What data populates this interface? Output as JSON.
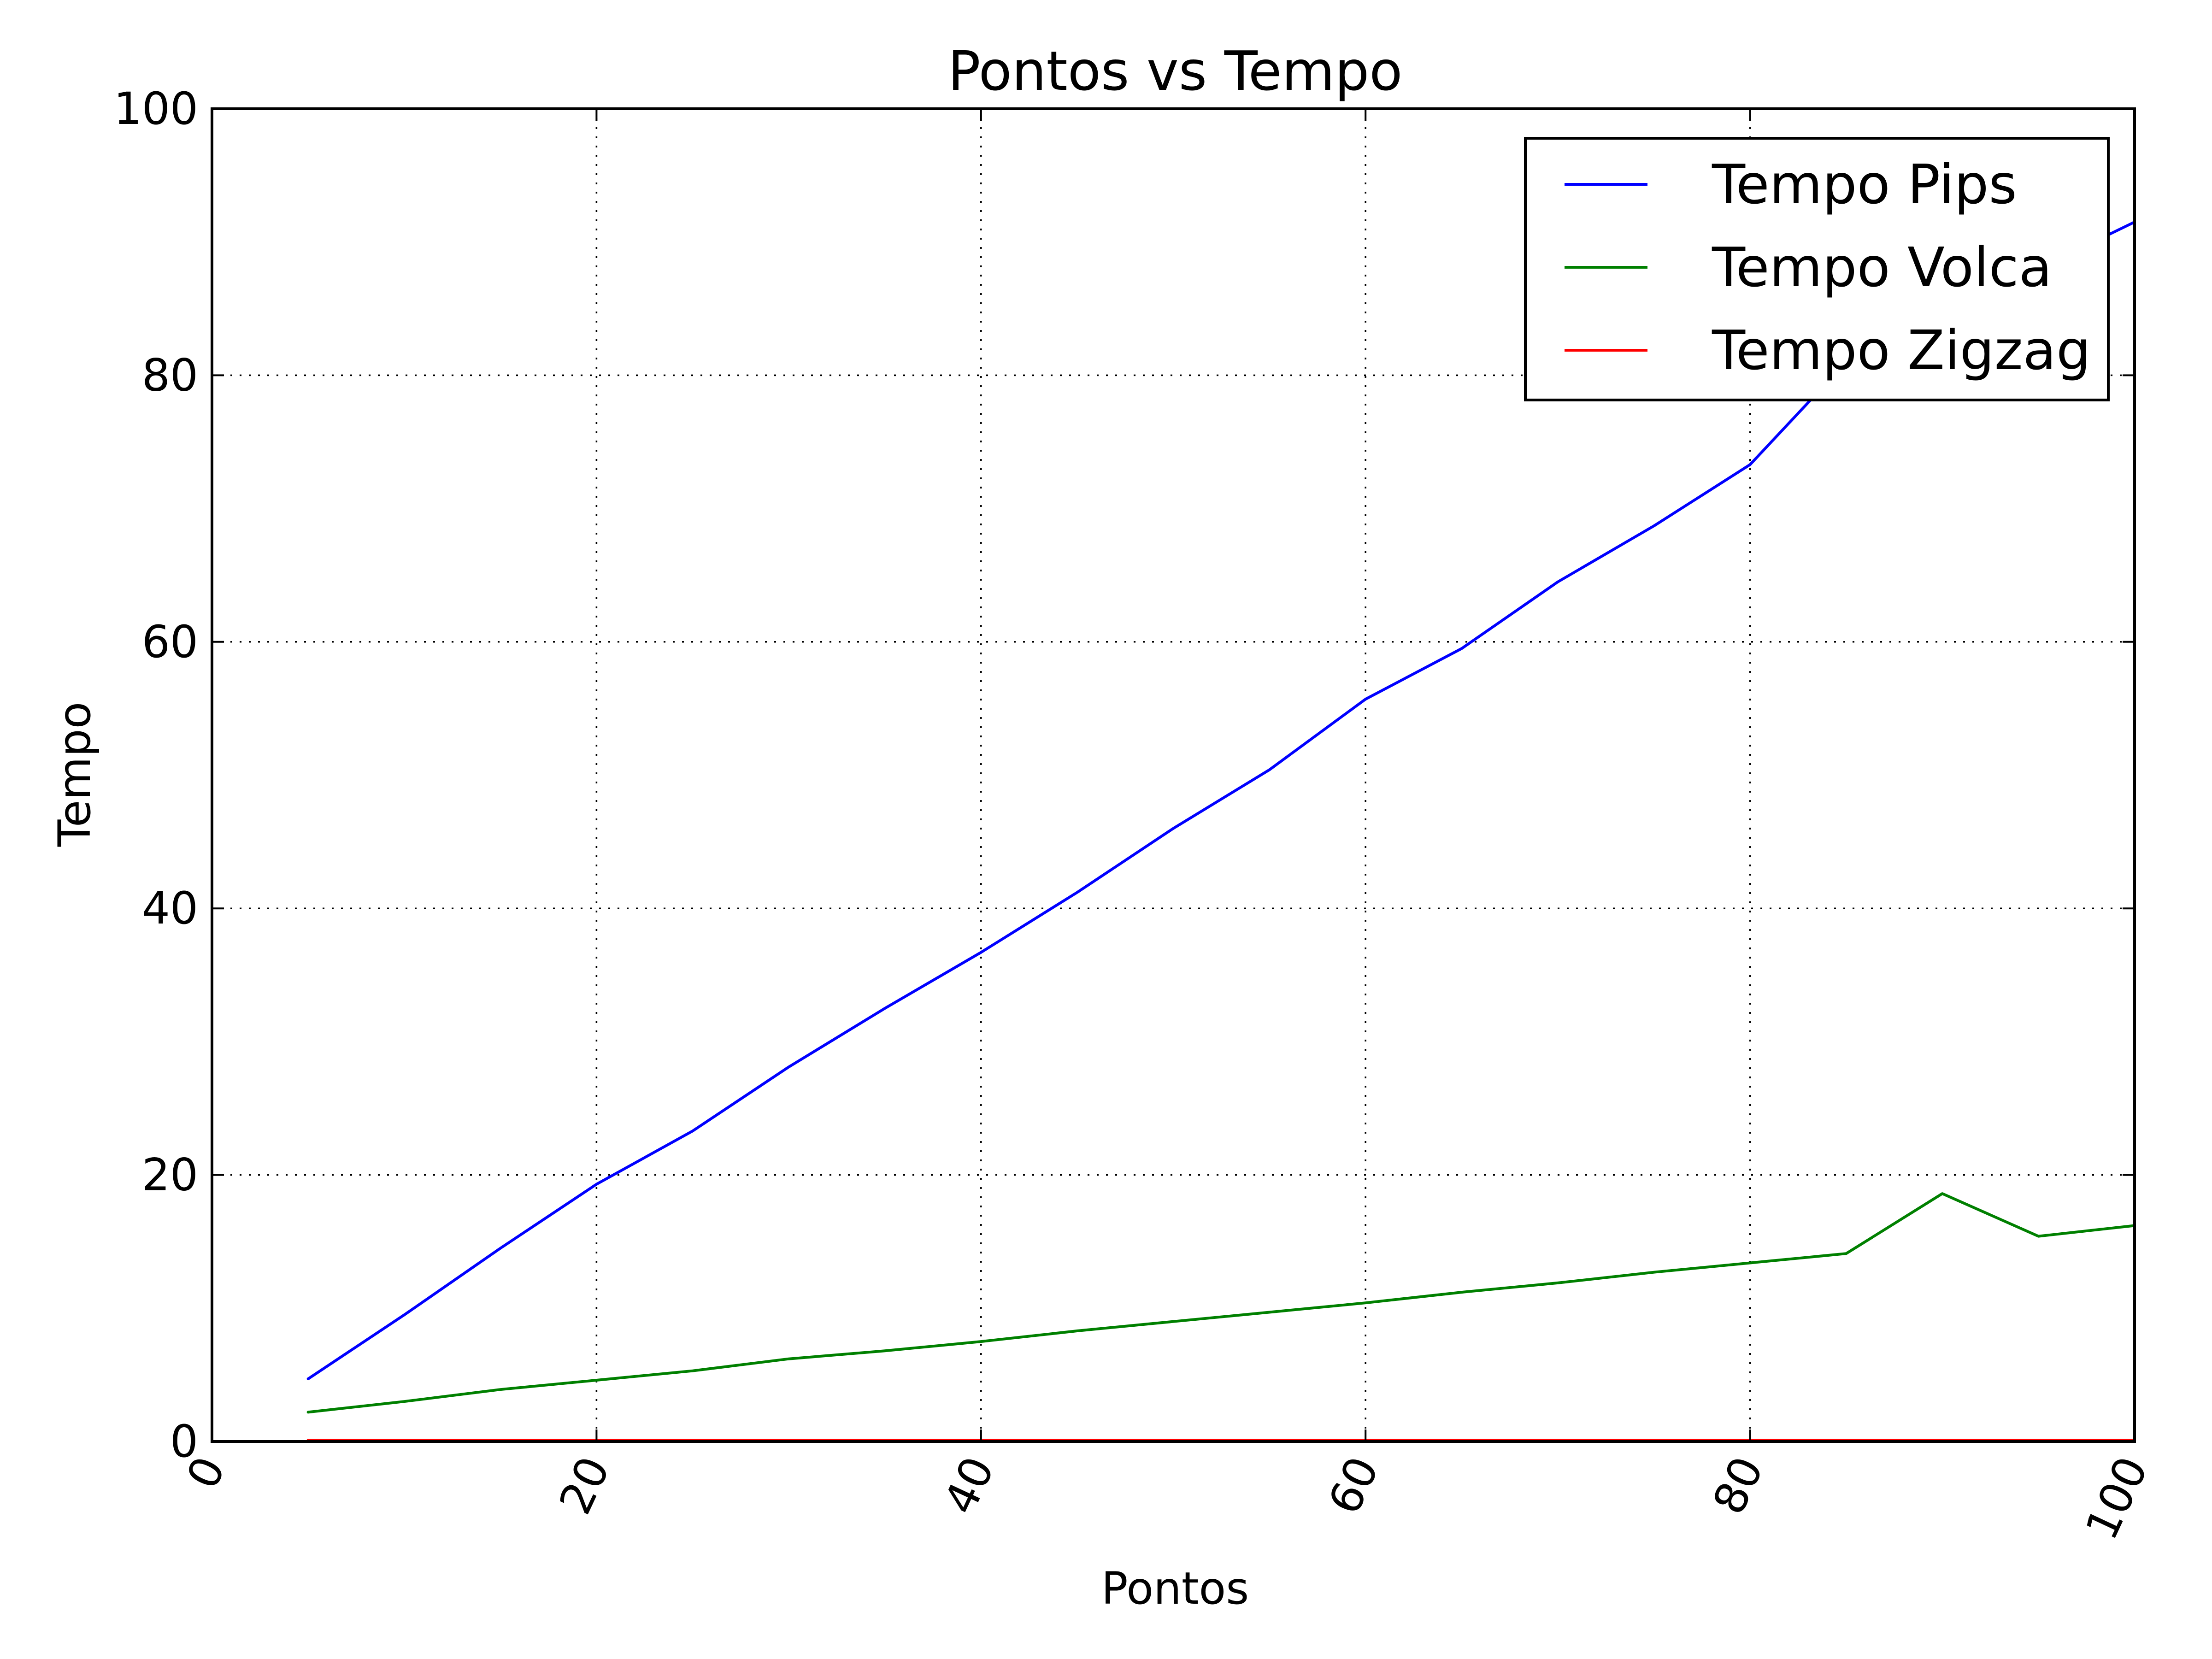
{
  "chart_data": {
    "type": "line",
    "title": "Pontos vs Tempo",
    "xlabel": "Pontos",
    "ylabel": "Tempo",
    "xlim": [
      0,
      100
    ],
    "ylim": [
      0,
      100
    ],
    "xticks": [
      0,
      20,
      40,
      60,
      80,
      100
    ],
    "yticks": [
      0,
      20,
      40,
      60,
      80,
      100
    ],
    "xtick_labels": [
      "0",
      "20",
      "40",
      "60",
      "80",
      "100"
    ],
    "ytick_labels": [
      "0",
      "20",
      "40",
      "60",
      "80",
      "100"
    ],
    "grid": true,
    "legend_position": "top-right",
    "x": [
      5,
      10,
      15,
      20,
      25,
      30,
      35,
      40,
      45,
      50,
      55,
      60,
      65,
      70,
      75,
      80,
      85,
      90,
      95,
      100
    ],
    "series": [
      {
        "name": "Tempo Pips",
        "color": "#0000ff",
        "values": [
          4.7,
          9.5,
          14.5,
          19.3,
          23.3,
          28.1,
          32.5,
          36.7,
          41.2,
          46.0,
          50.4,
          55.7,
          59.5,
          64.5,
          68.7,
          73.3,
          81.0,
          84.5,
          88.0,
          91.5
        ]
      },
      {
        "name": "Tempo Volca",
        "color": "#008000",
        "values": [
          2.2,
          3.0,
          3.9,
          4.6,
          5.3,
          6.2,
          6.8,
          7.5,
          8.3,
          9.0,
          9.7,
          10.4,
          11.2,
          11.9,
          12.7,
          13.4,
          14.1,
          18.6,
          15.4,
          16.2
        ]
      },
      {
        "name": "Tempo Zigzag",
        "color": "#ff0000",
        "values": [
          0.1,
          0.1,
          0.1,
          0.1,
          0.1,
          0.1,
          0.1,
          0.1,
          0.1,
          0.1,
          0.1,
          0.1,
          0.1,
          0.1,
          0.1,
          0.1,
          0.1,
          0.1,
          0.1,
          0.1
        ]
      }
    ]
  }
}
